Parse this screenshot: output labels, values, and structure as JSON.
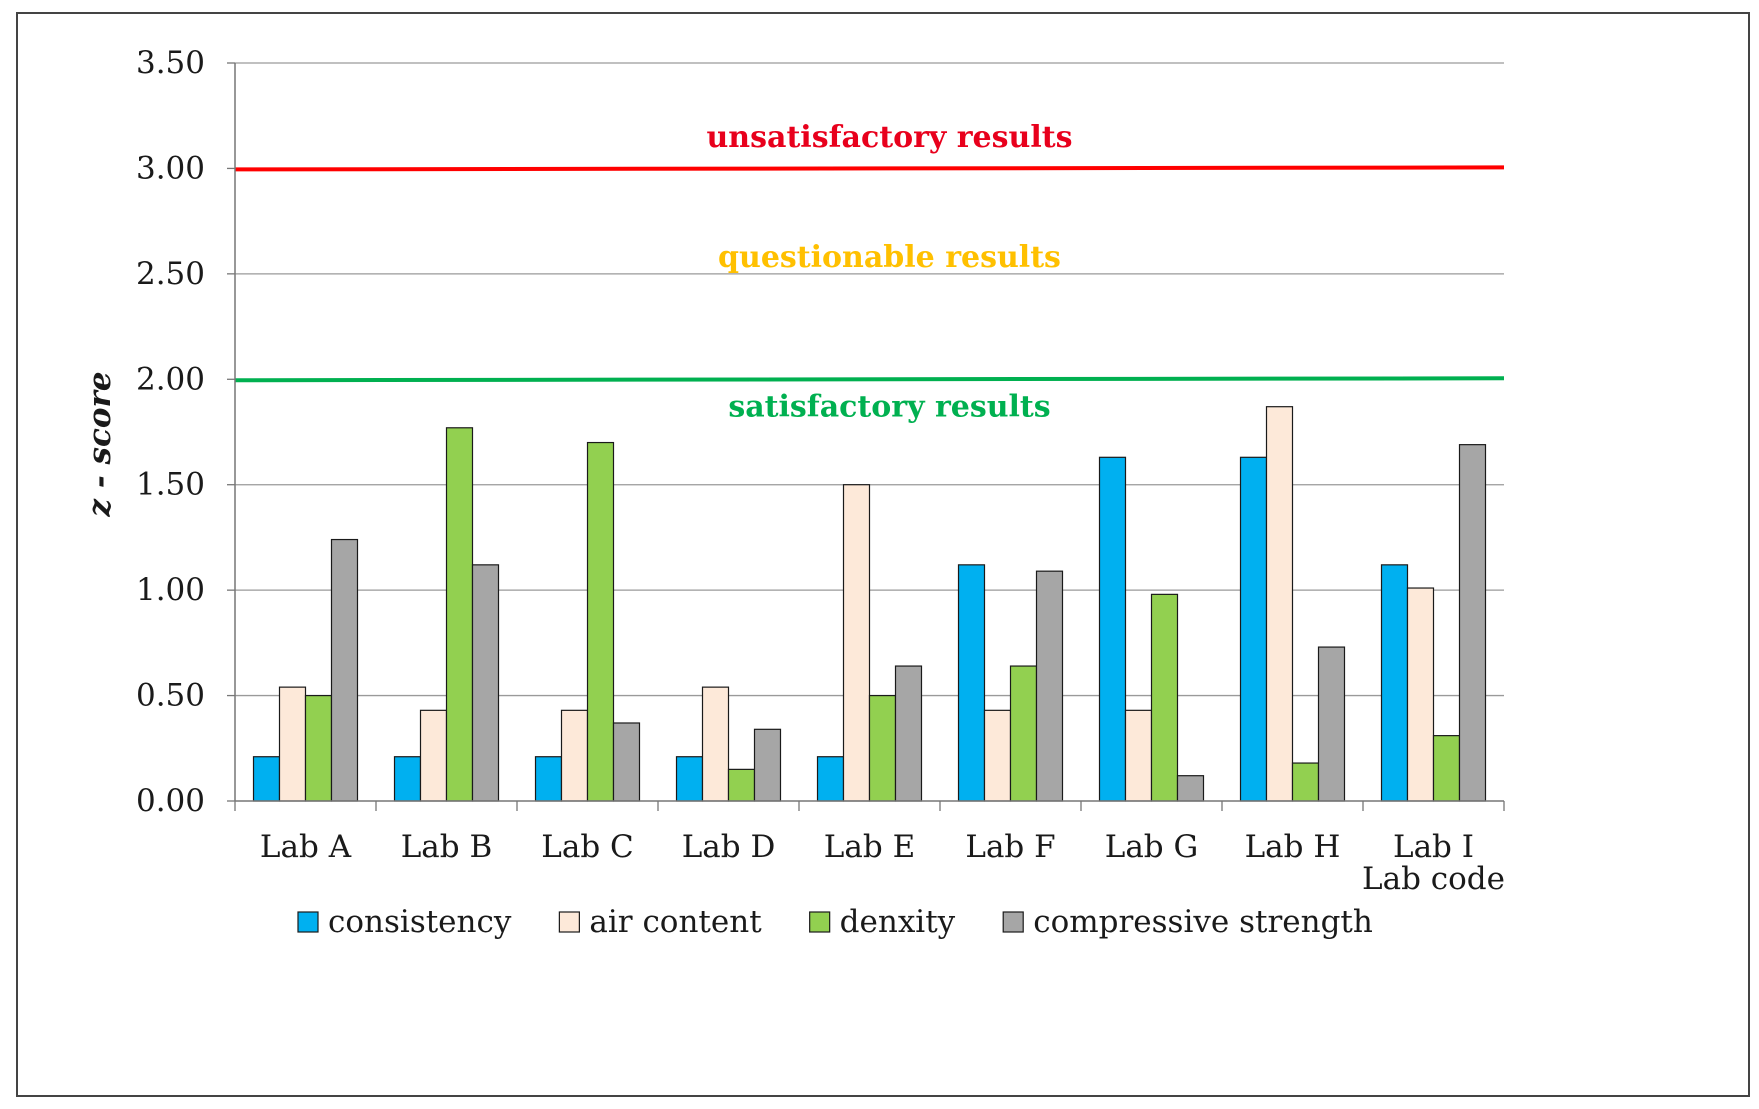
{
  "chart_data": {
    "type": "bar",
    "title": "",
    "xlabel": "Lab code",
    "ylabel": "z - score",
    "ylim": [
      0,
      3.5
    ],
    "yticks": [
      "0.00",
      "0.50",
      "1.00",
      "1.50",
      "2.00",
      "2.50",
      "3.00",
      "3.50"
    ],
    "grid": true,
    "legend_position": "bottom",
    "categories": [
      "Lab A",
      "Lab B",
      "Lab C",
      "Lab D",
      "Lab E",
      "Lab F",
      "Lab G",
      "Lab H",
      "Lab I"
    ],
    "series": [
      {
        "name": "consistency",
        "color": "#00B0F0",
        "values": [
          0.21,
          0.21,
          0.21,
          0.21,
          0.21,
          1.12,
          1.63,
          1.63,
          1.12
        ]
      },
      {
        "name": "air content",
        "color": "#FDE9D9",
        "values": [
          0.54,
          0.43,
          0.43,
          0.54,
          1.5,
          0.43,
          0.43,
          1.87,
          1.01
        ]
      },
      {
        "name": "denxity",
        "color": "#92D050",
        "values": [
          0.5,
          1.77,
          1.7,
          0.15,
          0.5,
          0.64,
          0.98,
          0.18,
          0.31
        ]
      },
      {
        "name": "compressive strength",
        "color": "#A6A6A6",
        "values": [
          1.24,
          1.12,
          0.37,
          0.34,
          0.64,
          1.09,
          0.12,
          0.73,
          1.69
        ]
      }
    ],
    "thresholds": [
      {
        "name": "satisfactory-line",
        "value": 2.0,
        "color": "#00B050"
      },
      {
        "name": "unsatisfactory-line",
        "value": 3.0,
        "color": "#FF0000"
      }
    ],
    "annotations": [
      {
        "name": "unsatisfactory",
        "text": "unsatisfactory results",
        "y": 3.15,
        "color": "#E8001C"
      },
      {
        "name": "questionable",
        "text": "questionable results",
        "y": 2.58,
        "color": "#FFC000"
      },
      {
        "name": "satisfactory",
        "text": "satisfactory results",
        "y": 1.87,
        "color": "#00B050"
      }
    ]
  }
}
